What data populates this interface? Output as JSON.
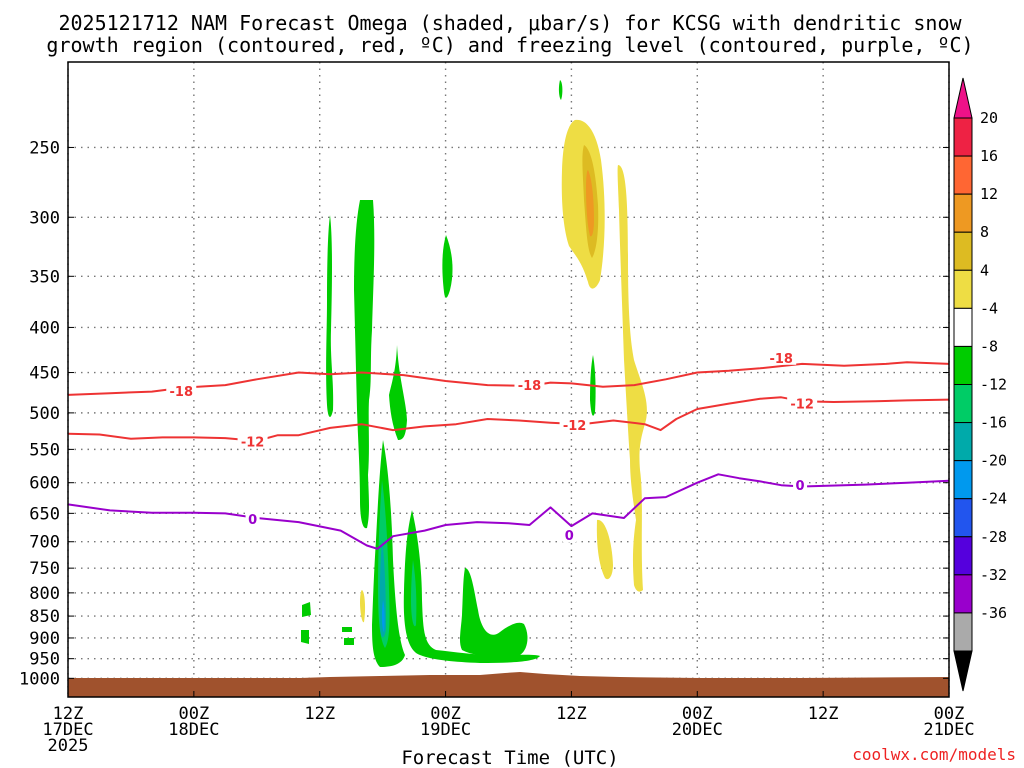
{
  "chart_data": {
    "type": "heatmap",
    "title_line1": "2025121712 NAM Forecast Omega (shaded, μbar/s) for KCSG with dendritic snow",
    "title_line2": "growth region (contoured, red, ºC) and freezing level (contoured, purple, ºC)",
    "xlabel": "Forecast Time (UTC)",
    "credit": "coolwx.com/models",
    "x_unit": "hours since 2025-12-17 12Z",
    "xlim": [
      0,
      84
    ],
    "ylim_hpa": [
      1050,
      200
    ],
    "x_ticks": [
      {
        "hour": 0,
        "line1": "12Z",
        "line2": "17DEC",
        "line3": "2025"
      },
      {
        "hour": 12,
        "line1": "00Z",
        "line2": "18DEC",
        "line3": ""
      },
      {
        "hour": 24,
        "line1": "12Z",
        "line2": "",
        "line3": ""
      },
      {
        "hour": 36,
        "line1": "00Z",
        "line2": "19DEC",
        "line3": ""
      },
      {
        "hour": 48,
        "line1": "12Z",
        "line2": "",
        "line3": ""
      },
      {
        "hour": 60,
        "line1": "00Z",
        "line2": "20DEC",
        "line3": ""
      },
      {
        "hour": 72,
        "line1": "12Z",
        "line2": "",
        "line3": ""
      },
      {
        "hour": 84,
        "line1": "00Z",
        "line2": "21DEC",
        "line3": ""
      }
    ],
    "y_ticks": [
      250,
      300,
      350,
      400,
      450,
      500,
      550,
      600,
      650,
      700,
      750,
      800,
      850,
      900,
      950,
      1000
    ],
    "colorbar": {
      "labels": [
        "20",
        "16",
        "12",
        "8",
        "4",
        "-4",
        "-8",
        "-12",
        "-16",
        "-20",
        "-24",
        "-28",
        "-32",
        "-36"
      ],
      "colors": [
        "#ee2244",
        "#ff6633",
        "#ee9922",
        "#ddbb22",
        "#eedd44",
        "#ffffff",
        "#00cc00",
        "#00cc66",
        "#00aaaa",
        "#0099ee",
        "#2255ee",
        "#5500dd",
        "#9900cc",
        "#aaaaaa"
      ],
      "top_arrow_color": "#ee1188",
      "bottom_arrow_color": "#000000"
    },
    "contours": [
      {
        "label": "-18",
        "color": "#ee3333",
        "label_at": [
          [
            10.8,
            472
          ],
          [
            44,
            465
          ],
          [
            68,
            433
          ]
        ],
        "points": [
          [
            0,
            477
          ],
          [
            4,
            475
          ],
          [
            8,
            473
          ],
          [
            11,
            468
          ],
          [
            15,
            465
          ],
          [
            18,
            458
          ],
          [
            22,
            450
          ],
          [
            25,
            452
          ],
          [
            28,
            450
          ],
          [
            32,
            453
          ],
          [
            36,
            460
          ],
          [
            40,
            465
          ],
          [
            44,
            466
          ],
          [
            46,
            462
          ],
          [
            48,
            463
          ],
          [
            51,
            467
          ],
          [
            54,
            465
          ],
          [
            57,
            458
          ],
          [
            60,
            450
          ],
          [
            63,
            448
          ],
          [
            66,
            445
          ],
          [
            70,
            440
          ],
          [
            74,
            442
          ],
          [
            78,
            440
          ],
          [
            80,
            438
          ],
          [
            84,
            440
          ]
        ]
      },
      {
        "label": "-12",
        "color": "#ee3333",
        "label_at": [
          [
            17.6,
            539
          ],
          [
            48.3,
            516
          ],
          [
            70,
            488
          ]
        ],
        "points": [
          [
            0,
            528
          ],
          [
            3,
            529
          ],
          [
            6,
            535
          ],
          [
            9,
            533
          ],
          [
            12,
            533
          ],
          [
            15,
            534
          ],
          [
            18,
            538
          ],
          [
            20,
            530
          ],
          [
            22,
            530
          ],
          [
            25,
            520
          ],
          [
            28,
            515
          ],
          [
            31,
            523
          ],
          [
            34,
            518
          ],
          [
            37,
            515
          ],
          [
            40,
            508
          ],
          [
            43,
            510
          ],
          [
            46,
            513
          ],
          [
            49,
            515
          ],
          [
            52,
            510
          ],
          [
            55,
            515
          ],
          [
            56.5,
            523
          ],
          [
            58,
            508
          ],
          [
            60,
            495
          ],
          [
            63,
            488
          ],
          [
            66,
            482
          ],
          [
            68,
            480
          ],
          [
            70,
            485
          ],
          [
            73,
            486
          ],
          [
            77,
            485
          ],
          [
            80,
            484
          ],
          [
            84,
            483
          ]
        ]
      },
      {
        "label": "0",
        "color": "#9900cc",
        "label_at": [
          [
            17.6,
            660
          ],
          [
            47.8,
            688
          ],
          [
            69.8,
            604
          ]
        ],
        "points": [
          [
            0,
            635
          ],
          [
            4,
            645
          ],
          [
            8,
            649
          ],
          [
            12,
            649
          ],
          [
            15,
            650
          ],
          [
            18,
            658
          ],
          [
            22,
            665
          ],
          [
            26,
            680
          ],
          [
            28.5,
            707
          ],
          [
            29.5,
            713
          ],
          [
            31,
            690
          ],
          [
            34,
            680
          ],
          [
            36,
            670
          ],
          [
            39,
            665
          ],
          [
            42,
            667
          ],
          [
            44,
            670
          ],
          [
            46,
            640
          ],
          [
            48,
            672
          ],
          [
            50,
            650
          ],
          [
            53,
            658
          ],
          [
            55,
            625
          ],
          [
            57,
            623
          ],
          [
            60,
            600
          ],
          [
            62,
            587
          ],
          [
            64,
            593
          ],
          [
            66,
            598
          ],
          [
            68,
            604
          ],
          [
            70,
            606
          ],
          [
            72,
            605
          ],
          [
            76,
            603
          ],
          [
            80,
            600
          ],
          [
            84,
            597
          ]
        ]
      }
    ]
  }
}
